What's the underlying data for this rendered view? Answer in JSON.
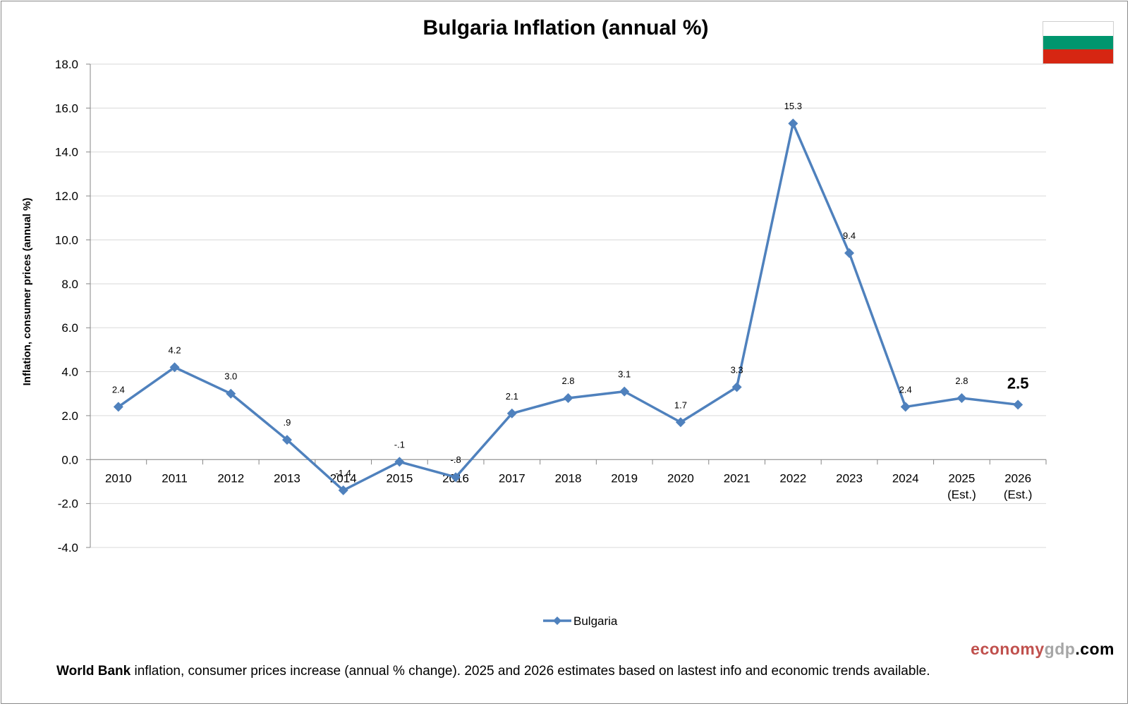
{
  "chart_data": {
    "type": "line",
    "title": "Bulgaria Inflation (annual %)",
    "ylabel": "Inflation, consumer prices (annual %)",
    "xlabel": "",
    "ylim": [
      -4,
      18
    ],
    "yticks": [
      "-4.0",
      "-2.0",
      "0.0",
      "2.0",
      "4.0",
      "6.0",
      "8.0",
      "10.0",
      "12.0",
      "14.0",
      "16.0",
      "18.0"
    ],
    "categories": [
      [
        "2010"
      ],
      [
        "2011"
      ],
      [
        "2012"
      ],
      [
        "2013"
      ],
      [
        "2014"
      ],
      [
        "2015"
      ],
      [
        "2016"
      ],
      [
        "2017"
      ],
      [
        "2018"
      ],
      [
        "2019"
      ],
      [
        "2020"
      ],
      [
        "2021"
      ],
      [
        "2022"
      ],
      [
        "2023"
      ],
      [
        "2024"
      ],
      [
        "2025",
        "(Est.)"
      ],
      [
        "2026",
        "(Est.)"
      ]
    ],
    "series": [
      {
        "name": "Bulgaria",
        "color": "#4F81BD",
        "values": [
          2.4,
          4.2,
          3.0,
          0.9,
          -1.4,
          -0.1,
          -0.8,
          2.1,
          2.8,
          3.1,
          1.7,
          3.3,
          15.3,
          9.4,
          2.4,
          2.8,
          2.5
        ],
        "labels": [
          "2.4",
          "4.2",
          "3.0",
          ".9",
          "-1.4",
          "-.1",
          "-.8",
          "2.1",
          "2.8",
          "3.1",
          "1.7",
          "3.3",
          "15.3",
          "9.4",
          "2.4",
          "2.8",
          "2.5"
        ]
      }
    ],
    "highlight_last_label": true,
    "grid": true,
    "legend_position": "bottom"
  },
  "flag_colors": [
    "#ffffff",
    "#00966E",
    "#D62612"
  ],
  "footer": {
    "bold": "World Bank",
    "text": " inflation, consumer prices increase (annual % change).  2025 and 2026 estimates based on lastest info and economic trends available."
  },
  "brand": {
    "part1": "economy",
    "part2": "gdp",
    "part3": ".com",
    "color1": "#C0504D",
    "color2": "#A6A6A6",
    "color3": "#000000"
  }
}
